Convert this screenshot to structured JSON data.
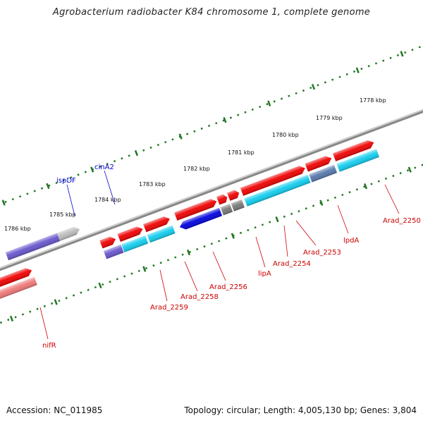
{
  "title": "Agrobacterium radiobacter K84 chromosome 1, complete genome",
  "footer": {
    "accession": "Accession: NC_011985",
    "stats": "Topology: circular; Length: 4,005,130 bp; Genes: 3,804"
  },
  "colors": {
    "forward_cds": "#ee0000",
    "reverse_cds": "#0000dd",
    "reverse_cds_light": "#6655cc",
    "cyan_feature": "#11ccee",
    "steel_feature": "#5577aa",
    "grey_feature": "#777777",
    "light_grey_feature": "#bbbbbb",
    "green_feature": "#22bb22",
    "pink_feature": "#ee7777",
    "backbone": "#888888",
    "tick": "#227722",
    "label_red": "#cc0000",
    "label_blue": "#0000cc"
  },
  "kbp_labels": [
    "1786 kbp",
    "1785 kbp",
    "1784 kbp",
    "1783 kbp",
    "1782 kbp",
    "1781 kbp",
    "1780 kbp",
    "1779 kbp",
    "1778 kbp"
  ],
  "gene_labels_top": [
    "ispDF",
    "cinA2"
  ],
  "gene_labels_bottom": [
    "nifR",
    "Arad_2259",
    "Arad_2258",
    "Arad_2256",
    "lipA",
    "Arad_2254",
    "Arad_2253",
    "lpdA",
    "Arad_2250"
  ]
}
